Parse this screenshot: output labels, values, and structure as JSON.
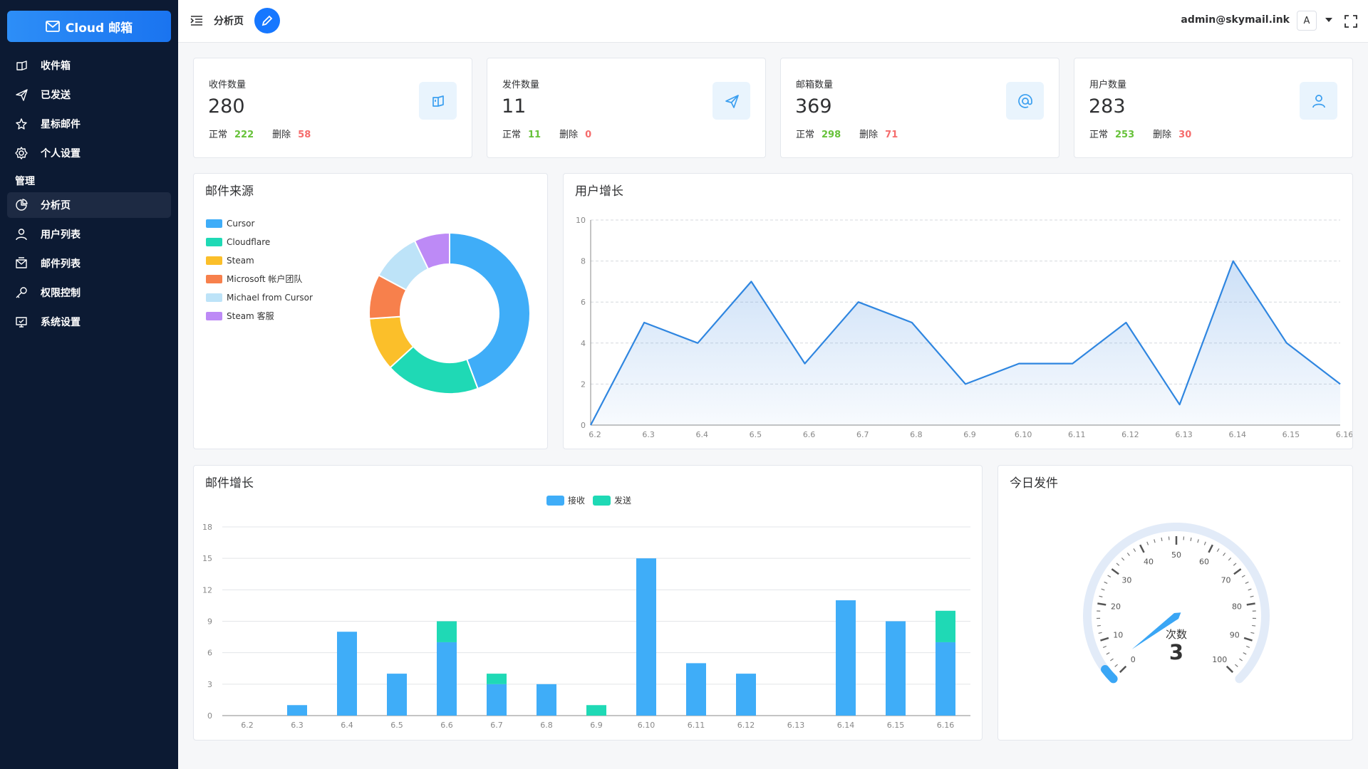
{
  "sidebar": {
    "brand": "Cloud 邮箱",
    "items": [
      "收件箱",
      "已发送",
      "星标邮件",
      "个人设置"
    ],
    "section": "管理",
    "admin_items": [
      "分析页",
      "用户列表",
      "邮件列表",
      "权限控制",
      "系统设置"
    ]
  },
  "header": {
    "title": "分析页",
    "user": "admin@skymail.ink",
    "avatar": "A"
  },
  "cards": [
    {
      "title": "收件数量",
      "value": 280,
      "normal_label": "正常",
      "normal": 222,
      "deleted_label": "删除",
      "deleted": 58
    },
    {
      "title": "发件数量",
      "value": 11,
      "normal_label": "正常",
      "normal": 11,
      "deleted_label": "删除",
      "deleted": 0
    },
    {
      "title": "邮箱数量",
      "value": 369,
      "normal_label": "正常",
      "normal": 298,
      "deleted_label": "删除",
      "deleted": 71
    },
    {
      "title": "用户数量",
      "value": 283,
      "normal_label": "正常",
      "normal": 253,
      "deleted_label": "删除",
      "deleted": 30
    }
  ],
  "chart_data": [
    {
      "type": "pie",
      "title": "邮件来源",
      "donut": true,
      "categories": [
        "Cursor",
        "Cloudflare",
        "Steam",
        "Microsoft 帐户团队",
        "Michael from Cursor",
        "Steam 客服"
      ],
      "values": [
        124,
        53,
        30,
        25,
        28,
        20
      ],
      "colors": [
        "#3fadf8",
        "#1fd9b5",
        "#fbbf2a",
        "#f7804c",
        "#bde3f8",
        "#bd8af6"
      ]
    },
    {
      "type": "line",
      "title": "用户增长",
      "categories": [
        "6.2",
        "6.3",
        "6.4",
        "6.5",
        "6.6",
        "6.7",
        "6.8",
        "6.9",
        "6.10",
        "6.11",
        "6.12",
        "6.13",
        "6.14",
        "6.15",
        "6.16"
      ],
      "values": [
        0,
        5,
        4,
        7,
        3,
        6,
        5,
        2,
        3,
        3,
        5,
        1,
        8,
        4,
        2
      ],
      "color": "#2f86e0",
      "area": true,
      "grid": true,
      "ylim": [
        0,
        10
      ],
      "yticks": [
        0,
        2,
        4,
        6,
        8,
        10
      ]
    },
    {
      "type": "bar",
      "title": "邮件增长",
      "stacked": true,
      "legend": "top",
      "grid": true,
      "categories": [
        "6.2",
        "6.3",
        "6.4",
        "6.5",
        "6.6",
        "6.7",
        "6.8",
        "6.9",
        "6.10",
        "6.11",
        "6.12",
        "6.13",
        "6.14",
        "6.15",
        "6.16"
      ],
      "series": [
        {
          "name": "接收",
          "color": "#3fadf8",
          "values": [
            0,
            1,
            8,
            4,
            7,
            3,
            3,
            0,
            15,
            5,
            4,
            0,
            11,
            9,
            7
          ]
        },
        {
          "name": "发送",
          "color": "#1fd9b5",
          "values": [
            0,
            0,
            0,
            0,
            2,
            1,
            0,
            1,
            0,
            0,
            0,
            0,
            0,
            0,
            3
          ]
        }
      ],
      "ylim": [
        0,
        18
      ],
      "yticks": [
        0,
        3,
        6,
        9,
        12,
        15,
        18
      ]
    },
    {
      "type": "gauge",
      "title": "今日发件",
      "label": "次数",
      "value": 3,
      "color": "#3aa6f5",
      "ylim": [
        0,
        100
      ],
      "yticks": [
        0,
        10,
        20,
        30,
        40,
        50,
        60,
        70,
        80,
        90,
        100
      ]
    }
  ]
}
